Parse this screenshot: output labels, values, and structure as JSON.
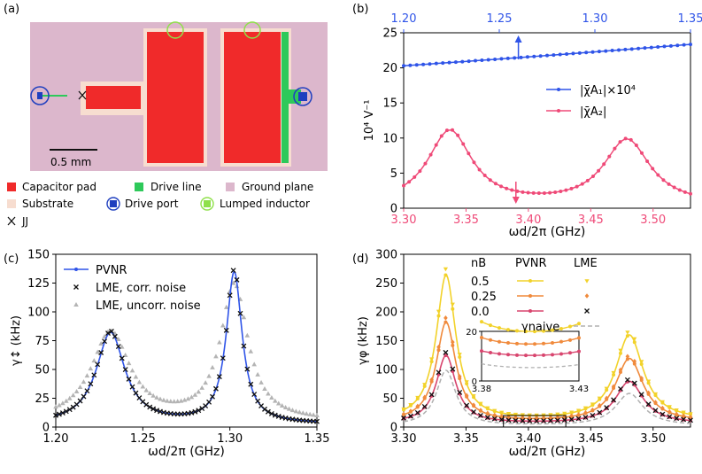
{
  "panel_labels": {
    "a": "(a)",
    "b": "(b)",
    "c": "(c)",
    "d": "(d)"
  },
  "layout_a": {
    "scale_bar_label": "0.5 mm",
    "legend": [
      {
        "label": "Capacitor pad",
        "color": "#f02a2a",
        "marker": "square"
      },
      {
        "label": "Drive line",
        "color": "#2ec95a",
        "marker": "square"
      },
      {
        "label": "Ground plane",
        "color": "#dcb7cc",
        "marker": "square"
      },
      {
        "label": "Substrate",
        "color": "#f7ddd0",
        "marker": "square"
      },
      {
        "label": "Drive port",
        "color": "#1f3fbf",
        "marker": "circle-square"
      },
      {
        "label": "Lumped inductor",
        "color": "#8fe04a",
        "marker": "circle-square"
      },
      {
        "label": "JJ",
        "color": "#111111",
        "marker": "cross"
      }
    ]
  },
  "colors": {
    "blue": "#2f54e8",
    "pink": "#ef4a78",
    "black": "#111111",
    "gray": "#b4b4b4",
    "yellow": "#f2d22a",
    "orange": "#f08a3c",
    "rose": "#d8456e",
    "dashed": "#b0b0b0"
  },
  "chart_data": [
    {
      "id": "b",
      "type": "line",
      "xlabel": "ωd/2π (GHz)",
      "ylabel": "10⁴ V⁻¹",
      "xlim": [
        3.3,
        3.53
      ],
      "ylim": [
        0,
        25
      ],
      "x_ticks": [
        "3.30",
        "3.35",
        "3.40",
        "3.45",
        "3.50"
      ],
      "y_ticks": [
        "0",
        "5",
        "10",
        "15",
        "20",
        "25"
      ],
      "top_axis": {
        "xlim": [
          1.2,
          1.35
        ],
        "ticks": [
          "1.20",
          "1.25",
          "1.30",
          "1.35"
        ]
      },
      "arrows": [
        {
          "axis": "top",
          "x": 1.26
        },
        {
          "axis": "bottom",
          "x": 3.39
        }
      ],
      "legend": [
        "|χ̄A₁|×10⁴",
        "|χ̄A₂|"
      ],
      "series": [
        {
          "name": "|χ̄A₁|×10⁴",
          "color": "#2f54e8",
          "axis": "top",
          "x_start": 1.2,
          "x_end": 1.35,
          "y_start": 20.3,
          "y_end": 23.1,
          "n": 45
        },
        {
          "name": "|χ̄A₂|",
          "color": "#ef4a78",
          "axis": "bottom",
          "peaks": [
            {
              "f0": 3.337,
              "w": 0.0215,
              "a": 10.6
            },
            {
              "f0": 3.479,
              "w": 0.0225,
              "a": 9.3
            }
          ],
          "x_start": 3.3,
          "x_end": 3.53,
          "n": 54
        }
      ]
    },
    {
      "id": "c",
      "type": "line",
      "xlabel": "ωd/2π (GHz)",
      "ylabel": "γ↕ (kHz)",
      "xlim": [
        1.2,
        1.35
      ],
      "ylim": [
        0,
        150
      ],
      "x_ticks": [
        "1.20",
        "1.25",
        "1.30",
        "1.35"
      ],
      "y_ticks": [
        "0",
        "25",
        "50",
        "75",
        "100",
        "125",
        "150"
      ],
      "legend": [
        "PVNR",
        "LME, corr. noise",
        "LME, uncorr. noise"
      ],
      "series": [
        {
          "name": "PVNR",
          "color": "#2f54e8",
          "marker": "dot",
          "peaks": [
            {
              "f0": 1.2315,
              "w": 0.01,
              "a": 79
            },
            {
              "f0": 1.3025,
              "w": 0.0055,
              "a": 131
            }
          ],
          "base": 2.5
        },
        {
          "name": "LME, corr. noise",
          "color": "#111111",
          "marker": "x",
          "peaks": [
            {
              "f0": 1.2315,
              "w": 0.01,
              "a": 80
            },
            {
              "f0": 1.3025,
              "w": 0.0055,
              "a": 133
            }
          ],
          "base": 2.5
        },
        {
          "name": "LME, uncorr. noise",
          "color": "#b4b4b4",
          "marker": "triangle",
          "peaks": [
            {
              "f0": 1.2315,
              "w": 0.0135,
              "a": 77
            },
            {
              "f0": 1.3025,
              "w": 0.0095,
              "a": 118
            }
          ],
          "base": 4.5
        }
      ]
    },
    {
      "id": "d",
      "type": "line",
      "xlabel": "ωd/2π (GHz)",
      "ylabel": "γφ (kHz)",
      "xlim": [
        3.3,
        3.53
      ],
      "ylim": [
        0,
        300
      ],
      "x_ticks": [
        "3.30",
        "3.35",
        "3.40",
        "3.45",
        "3.50"
      ],
      "y_ticks": [
        "0",
        "50",
        "100",
        "150",
        "200",
        "250",
        "300"
      ],
      "legend_header": {
        "nb": "nB",
        "pvnr": "PVNR",
        "lme": "LME"
      },
      "legend_rows": [
        "0.5",
        "0.25",
        "0.0"
      ],
      "naive_label": "γnaive",
      "series": [
        {
          "name": "0.5",
          "color": "#f2d22a",
          "peaks": [
            {
              "f0": 3.334,
              "w": 0.0095,
              "a": 252
            },
            {
              "f0": 3.481,
              "w": 0.0135,
              "a": 148
            }
          ],
          "base": 11
        },
        {
          "name": "0.25",
          "color": "#f08a3c",
          "peaks": [
            {
              "f0": 3.334,
              "w": 0.0095,
              "a": 173
            },
            {
              "f0": 3.481,
              "w": 0.0135,
              "a": 110
            }
          ],
          "base": 8.5
        },
        {
          "name": "0.0",
          "color": "#d8456e",
          "peaks": [
            {
              "f0": 3.334,
              "w": 0.0095,
              "a": 118
            },
            {
              "f0": 3.481,
              "w": 0.0135,
              "a": 73
            }
          ],
          "base": 6
        },
        {
          "name": "γnaive",
          "color": "#b0b0b0",
          "dashed": true,
          "peaks": [
            {
              "f0": 3.334,
              "w": 0.0095,
              "a": 96
            },
            {
              "f0": 3.481,
              "w": 0.0135,
              "a": 56
            }
          ],
          "base": 2
        }
      ],
      "inset": {
        "xlim": [
          3.38,
          3.43
        ],
        "ylim": [
          0,
          20
        ],
        "x_ticks": [
          "3.38",
          "3.43"
        ],
        "y_ticks": [
          "0",
          "20"
        ]
      }
    }
  ]
}
